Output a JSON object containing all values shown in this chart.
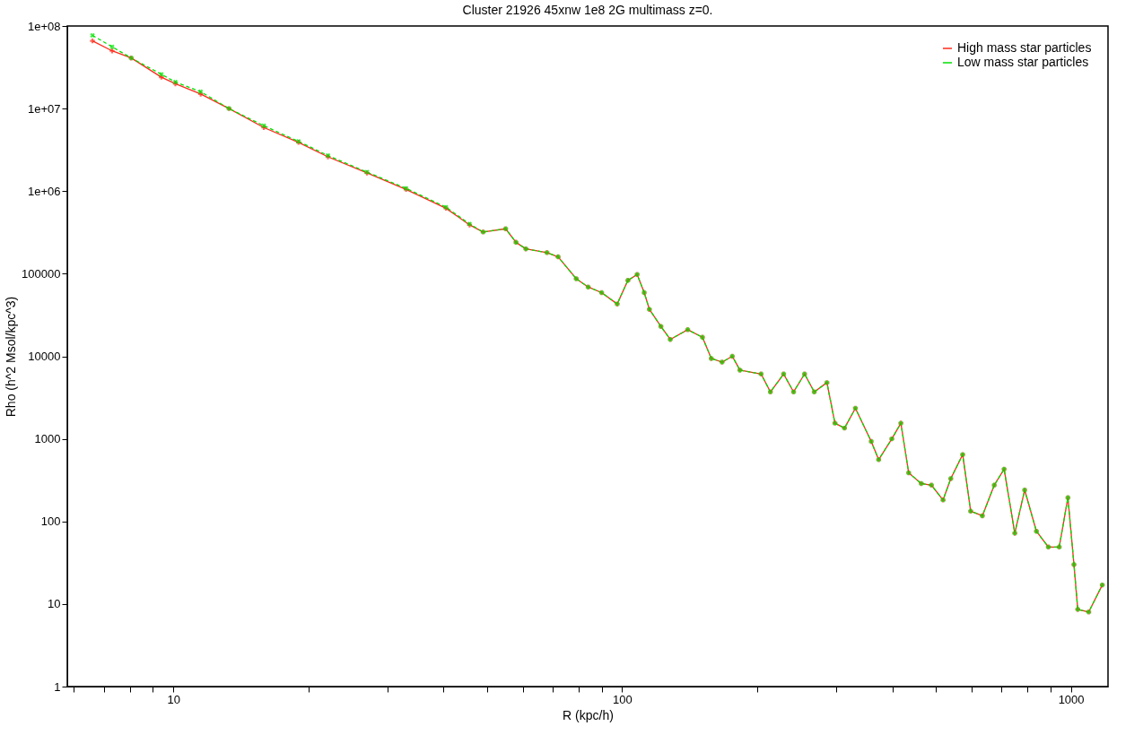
{
  "chart_data": {
    "type": "line",
    "title": "Cluster 21926 45xnw 1e8 2G multimass z=0.",
    "xlabel": "R (kpc/h)",
    "ylabel": "Rho (h^2 Msol/kpc^3)",
    "log": "xy",
    "grid": false,
    "legend": "top right",
    "marker": "cross",
    "xlim": [
      5.8,
      1210
    ],
    "ylim": [
      1,
      100000000
    ],
    "xticks": [
      {
        "value": 6,
        "label": null
      },
      {
        "value": 7,
        "label": null
      },
      {
        "value": 8,
        "label": null
      },
      {
        "value": 9,
        "label": null
      },
      10,
      {
        "value": 20,
        "label": null
      },
      {
        "value": 30,
        "label": null
      },
      {
        "value": 40,
        "label": null
      },
      {
        "value": 50,
        "label": null
      },
      {
        "value": 60,
        "label": null
      },
      {
        "value": 70,
        "label": null
      },
      {
        "value": 80,
        "label": null
      },
      {
        "value": 90,
        "label": null
      },
      100,
      {
        "value": 200,
        "label": null
      },
      {
        "value": 300,
        "label": null
      },
      {
        "value": 400,
        "label": null
      },
      {
        "value": 500,
        "label": null
      },
      {
        "value": 600,
        "label": null
      },
      {
        "value": 700,
        "label": null
      },
      {
        "value": 800,
        "label": null
      },
      {
        "value": 900,
        "label": null
      },
      1000
    ],
    "yticks": [
      1,
      10,
      100,
      1000,
      10000,
      100000,
      {
        "value": 1000000,
        "label": "1e+06"
      },
      {
        "value": 10000000,
        "label": "1e+07"
      },
      {
        "value": 100000000,
        "label": "1e+08"
      }
    ],
    "x": [
      6.6,
      7.3,
      8.05,
      9.4,
      10.1,
      11.5,
      13.3,
      15.9,
      19,
      22.1,
      27,
      33,
      40.5,
      45.7,
      49,
      55,
      58,
      61,
      68,
      72,
      79,
      84,
      90,
      97.5,
      103,
      108,
      112,
      115,
      122,
      128,
      140,
      151,
      158,
      167,
      176,
      183,
      204,
      214,
      229,
      241,
      255,
      268,
      286,
      298,
      313,
      331,
      359,
      373,
      399,
      418,
      435,
      464,
      489,
      519,
      540,
      574,
      598,
      635,
      675,
      710,
      750,
      789,
      838,
      891,
      942,
      985,
      1016,
      1036,
      1096,
      1175
    ],
    "series": [
      {
        "name": "High mass star particles",
        "color": "#ff2a1a",
        "line_style": "solid",
        "values": [
          66000000,
          50000000,
          41000000,
          24000000,
          20000000,
          15000000,
          10000000,
          5900000,
          3900000,
          2600000,
          1660000,
          1050000,
          620000,
          390000,
          320000,
          350000,
          240000,
          200000,
          180000,
          160000,
          87000,
          69000,
          59000,
          43000,
          83000,
          98000,
          59000,
          37000,
          23000,
          16000,
          21000,
          17000,
          9400,
          8500,
          10000,
          6800,
          6100,
          3700,
          6100,
          3700,
          6100,
          3700,
          4800,
          1550,
          1350,
          2350,
          930,
          560,
          1000,
          1550,
          388,
          288,
          275,
          182,
          330,
          645,
          133,
          117,
          275,
          430,
          72,
          240,
          76,
          49,
          49,
          194,
          30,
          8.6,
          8,
          17
        ]
      },
      {
        "name": "Low mass star particles",
        "color": "#00e000",
        "line_style": "dashed",
        "values": [
          77000000,
          56000000,
          41000000,
          26000000,
          21000000,
          16000000,
          10000000,
          6200000,
          4000000,
          2700000,
          1700000,
          1080000,
          640000,
          400000,
          320000,
          350000,
          240000,
          200000,
          180000,
          160000,
          87000,
          69000,
          59000,
          43000,
          83000,
          98000,
          59000,
          37000,
          23000,
          16000,
          21000,
          17000,
          9400,
          8500,
          10000,
          6800,
          6100,
          3700,
          6100,
          3700,
          6100,
          3700,
          4800,
          1550,
          1350,
          2350,
          930,
          560,
          1000,
          1550,
          388,
          288,
          275,
          182,
          330,
          645,
          133,
          117,
          275,
          430,
          72,
          240,
          76,
          49,
          49,
          194,
          30,
          8.6,
          8,
          17
        ]
      }
    ]
  }
}
